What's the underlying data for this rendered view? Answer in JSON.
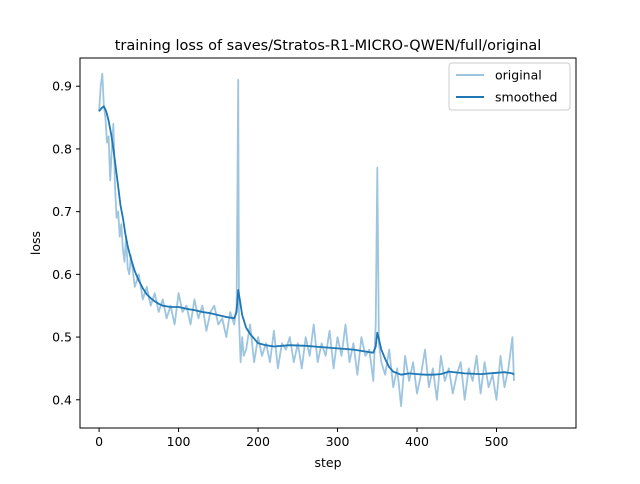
{
  "chart_data": {
    "type": "line",
    "title": "training loss of saves/Stratos-R1-MICRO-QWEN/full/original",
    "xlabel": "step",
    "ylabel": "loss",
    "xlim": [
      -24,
      600
    ],
    "ylim": [
      0.355,
      0.945
    ],
    "xticks": [
      0,
      100,
      200,
      300,
      400,
      500
    ],
    "yticks": [
      0.4,
      0.5,
      0.6,
      0.7,
      0.8,
      0.9
    ],
    "grid": false,
    "legend_placement": "top-right",
    "series": [
      {
        "name": "original",
        "color": "#9ec5e0",
        "x": [
          0,
          2,
          4,
          6,
          8,
          10,
          12,
          14,
          16,
          18,
          20,
          22,
          24,
          26,
          28,
          30,
          32,
          34,
          36,
          38,
          40,
          45,
          50,
          55,
          60,
          65,
          70,
          75,
          80,
          85,
          90,
          95,
          100,
          105,
          110,
          115,
          120,
          125,
          130,
          135,
          140,
          145,
          150,
          155,
          160,
          165,
          170,
          173,
          175,
          176,
          178,
          180,
          182,
          185,
          190,
          195,
          200,
          205,
          210,
          215,
          220,
          225,
          230,
          235,
          240,
          245,
          250,
          255,
          260,
          265,
          270,
          275,
          280,
          285,
          290,
          295,
          300,
          305,
          310,
          315,
          320,
          325,
          330,
          335,
          340,
          345,
          348,
          350,
          352,
          355,
          360,
          365,
          370,
          375,
          380,
          385,
          390,
          395,
          400,
          405,
          410,
          415,
          420,
          425,
          430,
          435,
          440,
          445,
          450,
          455,
          460,
          465,
          470,
          475,
          480,
          485,
          490,
          495,
          500,
          505,
          510,
          515,
          520,
          522
        ],
        "values": [
          0.86,
          0.9,
          0.92,
          0.87,
          0.85,
          0.81,
          0.82,
          0.75,
          0.8,
          0.84,
          0.74,
          0.69,
          0.7,
          0.66,
          0.68,
          0.64,
          0.62,
          0.66,
          0.61,
          0.6,
          0.63,
          0.58,
          0.6,
          0.56,
          0.58,
          0.55,
          0.57,
          0.54,
          0.56,
          0.53,
          0.55,
          0.52,
          0.57,
          0.54,
          0.55,
          0.52,
          0.56,
          0.53,
          0.55,
          0.51,
          0.54,
          0.55,
          0.52,
          0.53,
          0.5,
          0.54,
          0.52,
          0.55,
          0.91,
          0.53,
          0.46,
          0.5,
          0.47,
          0.48,
          0.52,
          0.46,
          0.5,
          0.47,
          0.49,
          0.46,
          0.51,
          0.45,
          0.49,
          0.48,
          0.5,
          0.46,
          0.49,
          0.45,
          0.5,
          0.47,
          0.52,
          0.46,
          0.49,
          0.47,
          0.51,
          0.45,
          0.5,
          0.47,
          0.52,
          0.46,
          0.49,
          0.44,
          0.5,
          0.47,
          0.48,
          0.43,
          0.52,
          0.77,
          0.49,
          0.46,
          0.44,
          0.48,
          0.42,
          0.45,
          0.39,
          0.47,
          0.43,
          0.46,
          0.41,
          0.44,
          0.48,
          0.42,
          0.45,
          0.4,
          0.47,
          0.43,
          0.45,
          0.41,
          0.44,
          0.46,
          0.4,
          0.45,
          0.43,
          0.47,
          0.41,
          0.46,
          0.42,
          0.44,
          0.4,
          0.47,
          0.42,
          0.45,
          0.5,
          0.43
        ]
      },
      {
        "name": "smoothed",
        "color": "#1f77b4",
        "x": [
          0,
          3,
          6,
          9,
          12,
          15,
          18,
          21,
          24,
          27,
          30,
          33,
          36,
          40,
          45,
          50,
          55,
          60,
          65,
          70,
          75,
          80,
          90,
          100,
          110,
          120,
          130,
          140,
          150,
          160,
          170,
          173,
          175,
          177,
          180,
          185,
          190,
          200,
          210,
          220,
          240,
          260,
          280,
          300,
          320,
          340,
          345,
          348,
          350,
          352,
          355,
          360,
          365,
          370,
          380,
          390,
          400,
          410,
          420,
          430,
          440,
          460,
          480,
          500,
          510,
          520,
          522
        ],
        "values": [
          0.86,
          0.865,
          0.868,
          0.86,
          0.845,
          0.825,
          0.8,
          0.77,
          0.74,
          0.71,
          0.69,
          0.665,
          0.645,
          0.625,
          0.605,
          0.59,
          0.578,
          0.568,
          0.562,
          0.557,
          0.553,
          0.55,
          0.548,
          0.548,
          0.545,
          0.543,
          0.54,
          0.538,
          0.535,
          0.532,
          0.53,
          0.54,
          0.575,
          0.56,
          0.535,
          0.515,
          0.505,
          0.49,
          0.487,
          0.485,
          0.487,
          0.486,
          0.484,
          0.482,
          0.48,
          0.476,
          0.475,
          0.485,
          0.507,
          0.497,
          0.48,
          0.465,
          0.452,
          0.445,
          0.44,
          0.442,
          0.441,
          0.44,
          0.44,
          0.441,
          0.445,
          0.442,
          0.441,
          0.443,
          0.444,
          0.442,
          0.44
        ]
      }
    ]
  }
}
